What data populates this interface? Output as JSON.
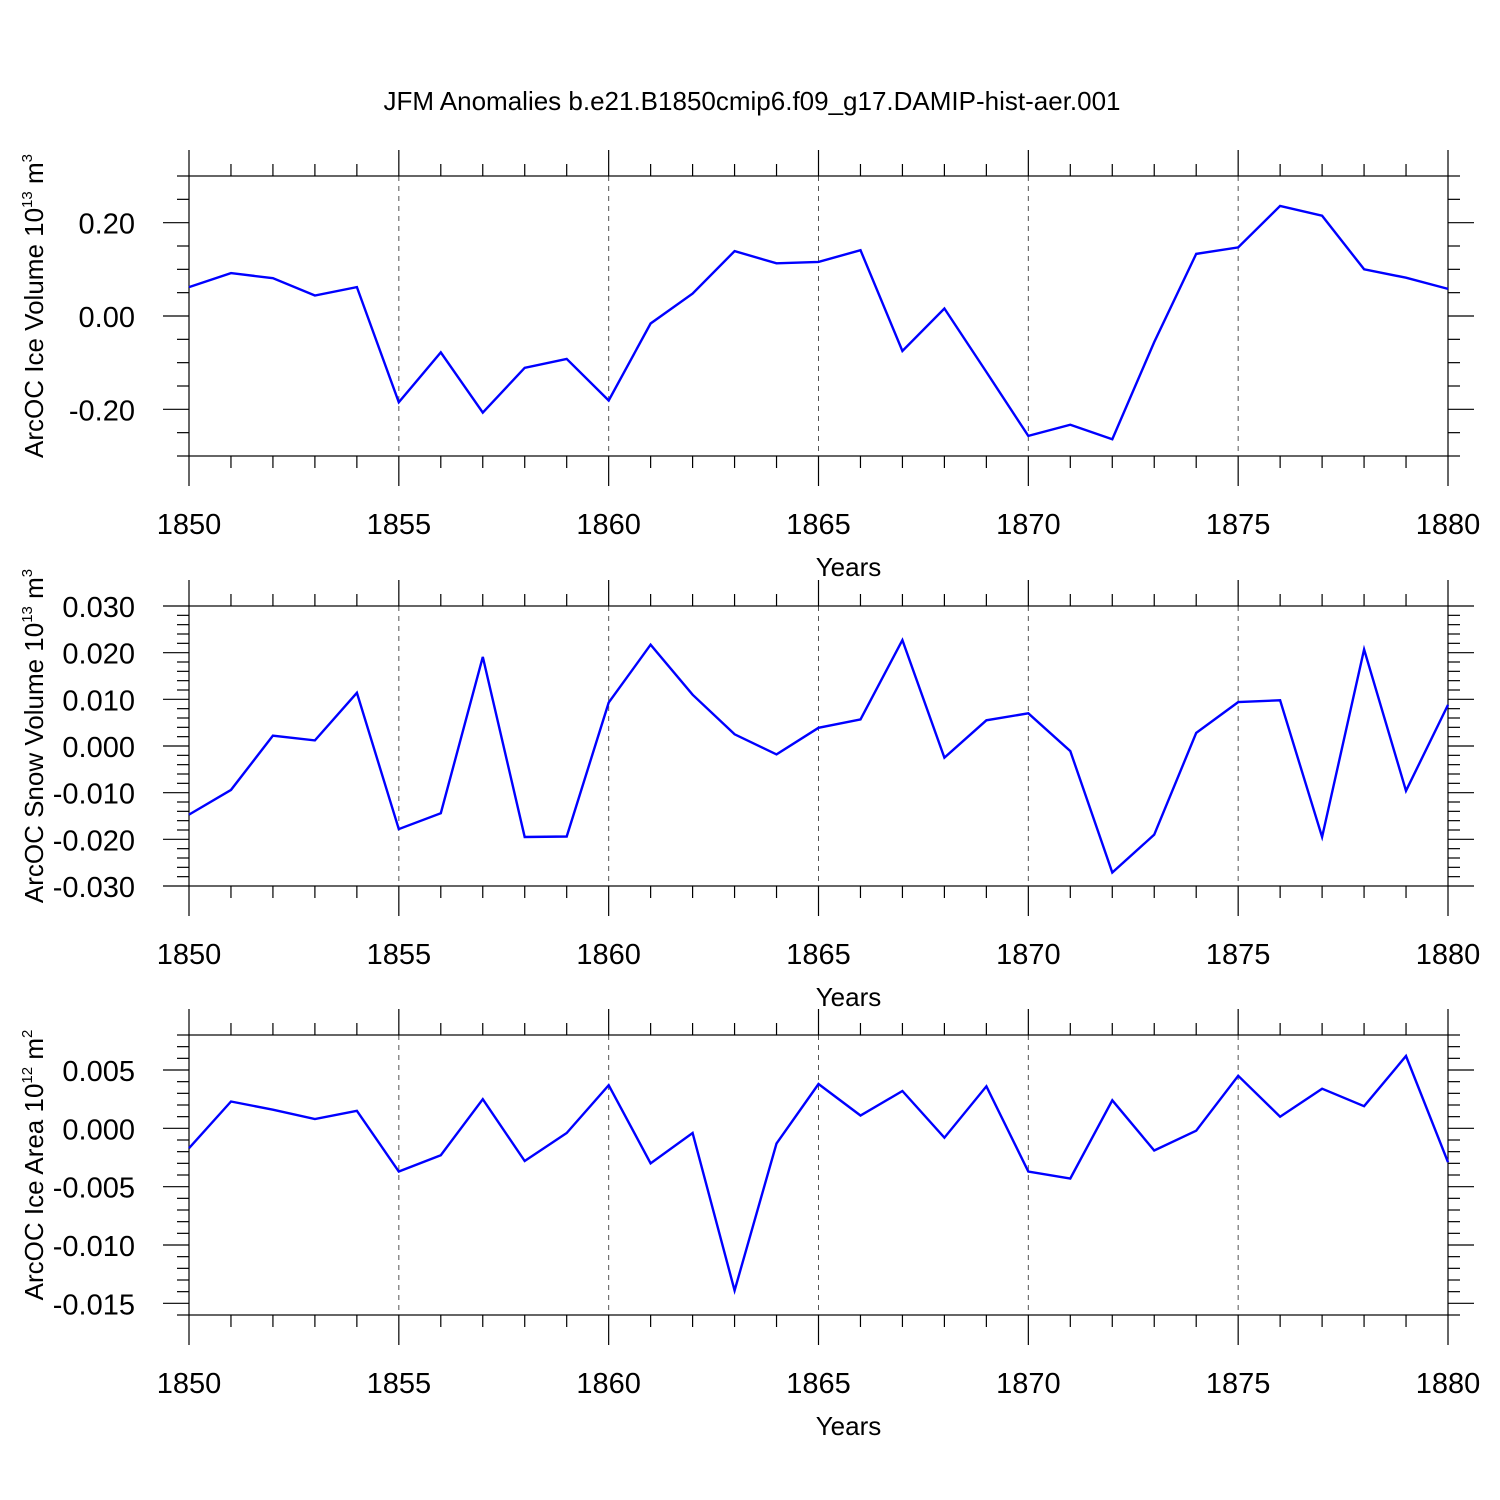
{
  "title": "JFM Anomalies b.e21.B1850cmip6.f09_g17.DAMIP-hist-aer.001",
  "colors": {
    "line": "#0000ff",
    "axis": "#000000",
    "grid": "#555555"
  },
  "chart_data": [
    {
      "type": "line",
      "ylabel_main": "ArcOC Ice Volume 10",
      "ylabel_exp": "13",
      "ylabel_unit": " m",
      "ylabel_unit_exp": "3",
      "xlabel": "Years",
      "xlim": [
        1850,
        1880
      ],
      "ylim": [
        -0.3,
        0.3
      ],
      "ytick_values": [
        -0.2,
        0.0,
        0.2
      ],
      "ytick_labels": [
        "-0.20",
        "0.00",
        "0.20"
      ],
      "yminor_step": 0.05,
      "xtick_values": [
        1850,
        1855,
        1860,
        1865,
        1870,
        1875,
        1880
      ],
      "xtick_labels": [
        "1850",
        "1855",
        "1860",
        "1865",
        "1870",
        "1875",
        "1880"
      ],
      "grid": "vertical dashed at major x ticks",
      "x": [
        1850,
        1851,
        1852,
        1853,
        1854,
        1855,
        1856,
        1857,
        1858,
        1859,
        1860,
        1861,
        1862,
        1863,
        1864,
        1865,
        1866,
        1867,
        1868,
        1869,
        1870,
        1871,
        1872,
        1873,
        1874,
        1875,
        1876,
        1877,
        1878,
        1879,
        1880
      ],
      "values": [
        0.062,
        0.092,
        0.081,
        0.044,
        0.062,
        -0.185,
        -0.078,
        -0.207,
        -0.111,
        -0.092,
        -0.181,
        -0.016,
        0.048,
        0.139,
        0.113,
        0.116,
        0.141,
        -0.075,
        0.016,
        -0.12,
        -0.257,
        -0.233,
        -0.264,
        -0.056,
        0.133,
        0.147,
        0.236,
        0.215,
        0.1,
        0.082,
        0.058
      ]
    },
    {
      "type": "line",
      "ylabel_main": "ArcOC Snow Volume 10",
      "ylabel_exp": "13",
      "ylabel_unit": " m",
      "ylabel_unit_exp": "3",
      "xlabel": "Years",
      "xlim": [
        1850,
        1880
      ],
      "ylim": [
        -0.03,
        0.03
      ],
      "ytick_values": [
        -0.03,
        -0.02,
        -0.01,
        0.0,
        0.01,
        0.02,
        0.03
      ],
      "ytick_labels": [
        "-0.030",
        "-0.020",
        "-0.010",
        "0.000",
        "0.010",
        "0.020",
        "0.030"
      ],
      "yminor_step": 0.002,
      "xtick_values": [
        1850,
        1855,
        1860,
        1865,
        1870,
        1875,
        1880
      ],
      "xtick_labels": [
        "1850",
        "1855",
        "1860",
        "1865",
        "1870",
        "1875",
        "1880"
      ],
      "grid": "vertical dashed at major x ticks",
      "x": [
        1850,
        1851,
        1852,
        1853,
        1854,
        1855,
        1856,
        1857,
        1858,
        1859,
        1860,
        1861,
        1862,
        1863,
        1864,
        1865,
        1866,
        1867,
        1868,
        1869,
        1870,
        1871,
        1872,
        1873,
        1874,
        1875,
        1876,
        1877,
        1878,
        1879,
        1880
      ],
      "values": [
        -0.0147,
        -0.0094,
        0.0022,
        0.0012,
        0.0114,
        -0.0178,
        -0.0144,
        0.0191,
        -0.0195,
        -0.0194,
        0.0093,
        0.0217,
        0.011,
        0.0025,
        -0.0018,
        0.0039,
        0.0057,
        0.0227,
        -0.0025,
        0.0055,
        0.007,
        -0.0011,
        -0.0271,
        -0.019,
        0.0028,
        0.0094,
        0.0098,
        -0.0195,
        0.0207,
        -0.0096,
        0.0088
      ]
    },
    {
      "type": "line",
      "ylabel_main": "ArcOC Ice Area 10",
      "ylabel_exp": "12",
      "ylabel_unit": " m",
      "ylabel_unit_exp": "2",
      "xlabel": "Years",
      "xlim": [
        1850,
        1880
      ],
      "ylim": [
        -0.016,
        0.008
      ],
      "ytick_values": [
        -0.015,
        -0.01,
        -0.005,
        0.0,
        0.005
      ],
      "ytick_labels": [
        "-0.015",
        "-0.010",
        "-0.005",
        "0.000",
        "0.005"
      ],
      "yminor_step": 0.001,
      "xtick_values": [
        1850,
        1855,
        1860,
        1865,
        1870,
        1875,
        1880
      ],
      "xtick_labels": [
        "1850",
        "1855",
        "1860",
        "1865",
        "1870",
        "1875",
        "1880"
      ],
      "grid": "vertical dashed at major x ticks",
      "x": [
        1850,
        1851,
        1852,
        1853,
        1854,
        1855,
        1856,
        1857,
        1858,
        1859,
        1860,
        1861,
        1862,
        1863,
        1864,
        1865,
        1866,
        1867,
        1868,
        1869,
        1870,
        1871,
        1872,
        1873,
        1874,
        1875,
        1876,
        1877,
        1878,
        1879,
        1880
      ],
      "values": [
        -0.0017,
        0.0023,
        0.0016,
        0.0008,
        0.0015,
        -0.0037,
        -0.0023,
        0.0025,
        -0.0028,
        -0.0004,
        0.0037,
        -0.003,
        -0.0004,
        -0.0139,
        -0.0013,
        0.0038,
        0.0011,
        0.0032,
        -0.0008,
        0.0036,
        -0.0037,
        -0.0043,
        0.0024,
        -0.0019,
        -0.0002,
        0.0045,
        0.001,
        0.0034,
        0.0019,
        0.0062,
        -0.0029
      ]
    }
  ]
}
